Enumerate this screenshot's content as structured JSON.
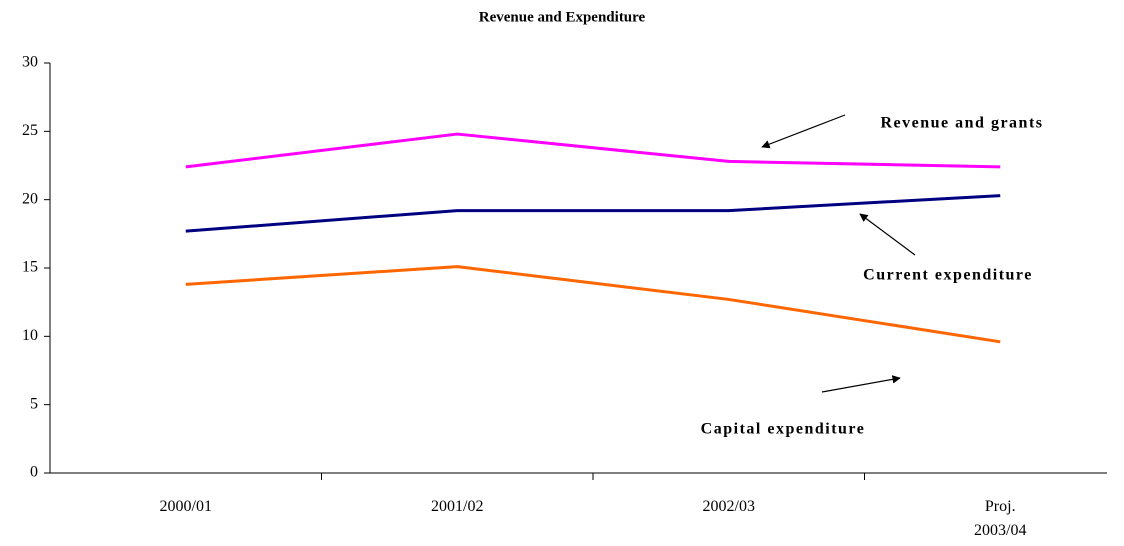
{
  "chart_data": {
    "type": "line",
    "title": "Revenue and Expenditure",
    "categories": [
      "2000/01",
      "2001/02",
      "2002/03",
      "Proj. 2003/04"
    ],
    "series": [
      {
        "name": "Revenue and grants",
        "color": "#ff00ff",
        "values": [
          22.4,
          24.8,
          22.8,
          22.4
        ]
      },
      {
        "name": "Current expenditure",
        "color": "#000080",
        "values": [
          17.7,
          19.2,
          19.2,
          20.3
        ]
      },
      {
        "name": "Capital expenditure",
        "color": "#ff6600",
        "values": [
          13.8,
          15.1,
          12.7,
          9.6
        ]
      }
    ],
    "ylim": [
      0,
      30
    ],
    "yticks": [
      0,
      5,
      10,
      15,
      20,
      25,
      30
    ],
    "grid": false
  }
}
